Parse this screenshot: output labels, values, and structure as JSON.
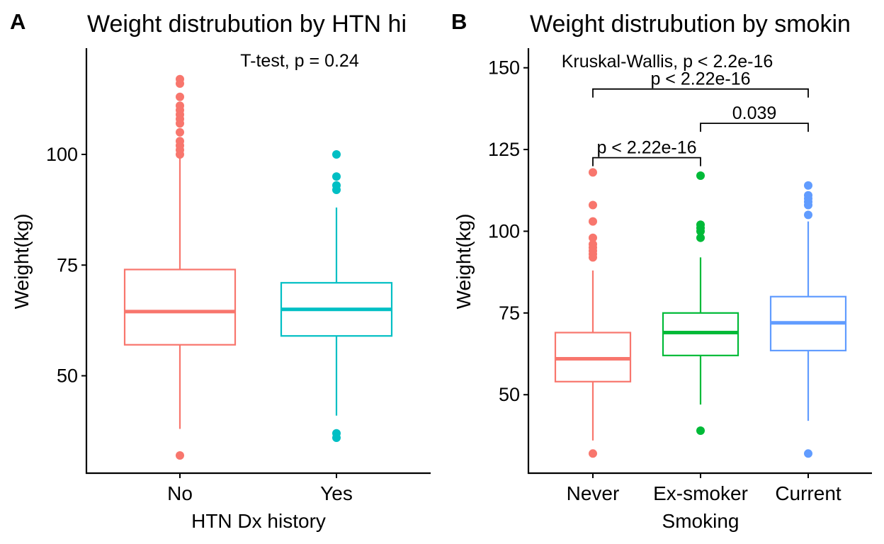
{
  "chart_data": [
    {
      "type": "box",
      "panel_tag": "A",
      "title": "Weight distrubution by HTN hi",
      "xlabel": "HTN Dx history",
      "ylabel": "Weight(kg)",
      "ylim": [
        28,
        124
      ],
      "yticks": [
        50,
        75,
        100
      ],
      "grid": false,
      "annotation": "T-test, p = 0.24",
      "categories": [
        "No",
        "Yes"
      ],
      "colors": [
        "#F8766D",
        "#00BFC4"
      ],
      "boxes": [
        {
          "category": "No",
          "q1": 57,
          "median": 64.5,
          "q3": 74,
          "whisker_low": 38,
          "whisker_high": 100,
          "outliers": [
            32,
            100,
            101,
            102,
            103,
            105,
            107,
            108,
            109,
            110,
            111,
            113,
            116,
            117
          ]
        },
        {
          "category": "Yes",
          "q1": 59,
          "median": 65,
          "q3": 71,
          "whisker_low": 41,
          "whisker_high": 88,
          "outliers": [
            36,
            37,
            92,
            93,
            95,
            100
          ]
        }
      ]
    },
    {
      "type": "box",
      "panel_tag": "B",
      "title": "Weight distrubution by smokin",
      "xlabel": "Smoking",
      "ylabel": "Weight(kg)",
      "ylim": [
        26,
        156
      ],
      "yticks": [
        50,
        75,
        100,
        125,
        150
      ],
      "grid": false,
      "annotation": "Kruskal-Wallis, p < 2.2e-16",
      "categories": [
        "Never",
        "Ex-smoker",
        "Current"
      ],
      "colors": [
        "#F8766D",
        "#00BA38",
        "#619CFF"
      ],
      "boxes": [
        {
          "category": "Never",
          "q1": 54,
          "median": 61,
          "q3": 69,
          "whisker_low": 36,
          "whisker_high": 88,
          "outliers": [
            32,
            92,
            93,
            94,
            95,
            96,
            98,
            103,
            108,
            118
          ]
        },
        {
          "category": "Ex-smoker",
          "q1": 62,
          "median": 69,
          "q3": 75,
          "whisker_low": 47,
          "whisker_high": 92,
          "outliers": [
            39,
            98,
            100,
            101,
            102,
            117
          ]
        },
        {
          "category": "Current",
          "q1": 63.5,
          "median": 72,
          "q3": 80,
          "whisker_low": 42,
          "whisker_high": 103,
          "outliers": [
            32,
            105,
            108,
            109,
            110,
            111,
            114
          ]
        }
      ],
      "comparisons": [
        {
          "from": "Never",
          "to": "Ex-smoker",
          "y": 122.5,
          "label": "p < 2.22e-16"
        },
        {
          "from": "Ex-smoker",
          "to": "Current",
          "y": 133,
          "label": "0.039"
        },
        {
          "from": "Never",
          "to": "Current",
          "y": 143.5,
          "label": "p < 2.22e-16"
        }
      ]
    }
  ]
}
